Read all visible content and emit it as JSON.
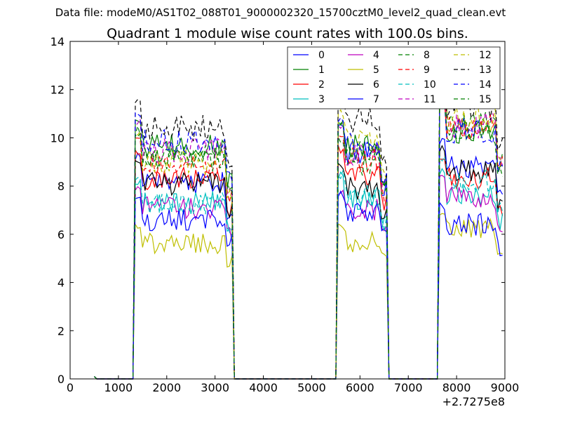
{
  "chart_data": {
    "type": "line",
    "suptitle": "Data file: modeM0/AS1T02_088T01_9000002320_15700cztM0_level2_quad_clean.evt",
    "title": "Quadrant 1 module wise count rates with 100.0s bins.",
    "xlabel": "",
    "ylabel": "",
    "offset_label": "+2.7275e8",
    "xlim": [
      0,
      9000
    ],
    "ylim": [
      0,
      14
    ],
    "xticks": [
      0,
      1000,
      2000,
      3000,
      4000,
      5000,
      6000,
      7000,
      8000,
      9000
    ],
    "yticks": [
      0,
      2,
      4,
      6,
      8,
      10,
      12,
      14
    ],
    "legend_position": "top-right",
    "series": [
      {
        "name": "0",
        "color": "#0000ff",
        "dash": "solid"
      },
      {
        "name": "1",
        "color": "#008000",
        "dash": "solid"
      },
      {
        "name": "2",
        "color": "#ff0000",
        "dash": "solid"
      },
      {
        "name": "3",
        "color": "#00bfbf",
        "dash": "solid"
      },
      {
        "name": "4",
        "color": "#bf00bf",
        "dash": "solid"
      },
      {
        "name": "5",
        "color": "#bfbf00",
        "dash": "solid"
      },
      {
        "name": "6",
        "color": "#000000",
        "dash": "solid"
      },
      {
        "name": "7",
        "color": "#0000ff",
        "dash": "solid"
      },
      {
        "name": "8",
        "color": "#008000",
        "dash": "dashed"
      },
      {
        "name": "9",
        "color": "#ff0000",
        "dash": "dashed"
      },
      {
        "name": "10",
        "color": "#00bfbf",
        "dash": "dashed"
      },
      {
        "name": "11",
        "color": "#bf00bf",
        "dash": "dashed"
      },
      {
        "name": "12",
        "color": "#bfbf00",
        "dash": "dashed"
      },
      {
        "name": "13",
        "color": "#000000",
        "dash": "dashed"
      },
      {
        "name": "14",
        "color": "#0000ff",
        "dash": "dashed"
      },
      {
        "name": "15",
        "color": "#008000",
        "dash": "dashed"
      }
    ],
    "segments": [
      {
        "start": 1350,
        "end": 3350,
        "levels": [
          8.2,
          9.6,
          8.3,
          7.3,
          7.1,
          5.6,
          8.1,
          6.6,
          9.2,
          8.8,
          7.3,
          9.5,
          9.0,
          10.4,
          9.8,
          9.1
        ]
      },
      {
        "start": 5550,
        "end": 6550,
        "levels": [
          9.4,
          9.6,
          8.5,
          7.5,
          7.0,
          5.7,
          7.9,
          6.9,
          8.9,
          9.1,
          7.6,
          9.3,
          9.9,
          10.8,
          9.7,
          9.5
        ]
      },
      {
        "start": 7650,
        "end": 8950,
        "levels": [
          8.8,
          10.3,
          8.3,
          7.7,
          7.5,
          6.2,
          8.6,
          6.4,
          10.6,
          10.4,
          8.2,
          10.5,
          10.7,
          11.3,
          10.3,
          10.2
        ]
      }
    ]
  }
}
